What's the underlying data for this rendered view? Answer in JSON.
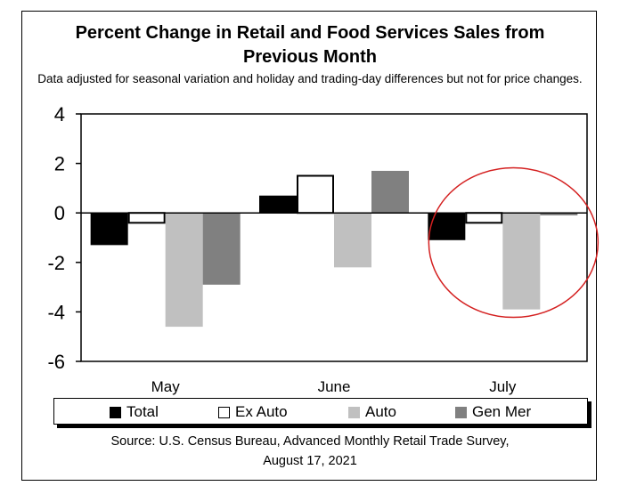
{
  "chart_data": {
    "type": "bar",
    "title_line1": "Percent Change in Retail and Food Services Sales from",
    "title_line2": "Previous Month",
    "subtitle": "Data adjusted for seasonal variation and holiday and trading-day differences but not for price changes.",
    "categories": [
      "May",
      "June",
      "July"
    ],
    "series": [
      {
        "name": "Total",
        "color": "#000000",
        "values": [
          -1.3,
          0.7,
          -1.1
        ]
      },
      {
        "name": "Ex Auto",
        "color": "#ffffff",
        "values": [
          -0.4,
          1.5,
          -0.4
        ]
      },
      {
        "name": "Auto",
        "color": "#c0c0c0",
        "values": [
          -4.6,
          -2.2,
          -3.9
        ]
      },
      {
        "name": "Gen Mer",
        "color": "#808080",
        "values": [
          -2.9,
          1.7,
          -0.1
        ]
      }
    ],
    "ylim": [
      -6,
      4
    ],
    "yticks": [
      "4",
      "2",
      "0",
      "-2",
      "-4",
      "-6"
    ],
    "grid": false,
    "legend_position": "bottom",
    "source_line1": "Source: U.S. Census Bureau, Advanced Monthly Retail Trade Survey,",
    "source_line2": "August 17, 2021",
    "annotation": {
      "type": "circle",
      "category": "July",
      "color": "#d42020"
    }
  }
}
